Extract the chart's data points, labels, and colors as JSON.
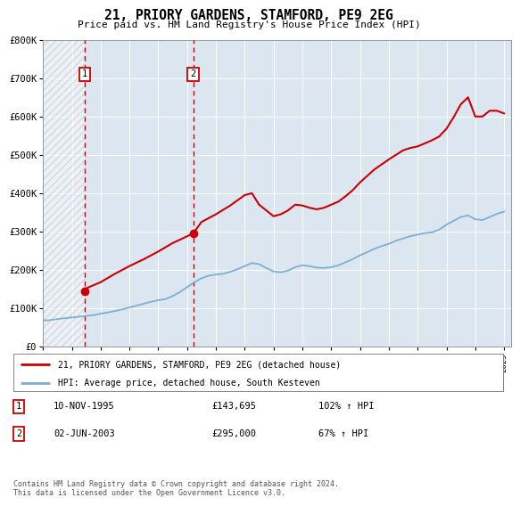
{
  "title": "21, PRIORY GARDENS, STAMFORD, PE9 2EG",
  "subtitle": "Price paid vs. HM Land Registry's House Price Index (HPI)",
  "legend_line1": "21, PRIORY GARDENS, STAMFORD, PE9 2EG (detached house)",
  "legend_line2": "HPI: Average price, detached house, South Kesteven",
  "footer": "Contains HM Land Registry data © Crown copyright and database right 2024.\nThis data is licensed under the Open Government Licence v3.0.",
  "sale1_date": "10-NOV-1995",
  "sale1_price": "£143,695",
  "sale1_hpi": "102% ↑ HPI",
  "sale1_x": 1995.87,
  "sale1_y": 143695,
  "sale2_date": "02-JUN-2003",
  "sale2_price": "£295,000",
  "sale2_hpi": "67% ↑ HPI",
  "sale2_x": 2003.42,
  "sale2_y": 295000,
  "ylim": [
    0,
    800000
  ],
  "xlim": [
    1993.0,
    2025.5
  ],
  "hatch_end": 1995.87,
  "red_color": "#cc0000",
  "blue_color": "#7bafd4",
  "background_color": "#dce6f1",
  "grid_color": "#ffffff",
  "hpi_years": [
    1993,
    1993.5,
    1994,
    1994.5,
    1995,
    1995.5,
    1996,
    1996.5,
    1997,
    1997.5,
    1998,
    1998.5,
    1999,
    1999.5,
    2000,
    2000.5,
    2001,
    2001.5,
    2002,
    2002.5,
    2003,
    2003.5,
    2004,
    2004.5,
    2005,
    2005.5,
    2006,
    2006.5,
    2007,
    2007.5,
    2008,
    2008.5,
    2009,
    2009.5,
    2010,
    2010.5,
    2011,
    2011.5,
    2012,
    2012.5,
    2013,
    2013.5,
    2014,
    2014.5,
    2015,
    2015.5,
    2016,
    2016.5,
    2017,
    2017.5,
    2018,
    2018.5,
    2019,
    2019.5,
    2020,
    2020.5,
    2021,
    2021.5,
    2022,
    2022.5,
    2023,
    2023.5,
    2024,
    2024.5,
    2025
  ],
  "hpi_values": [
    68000,
    69000,
    72000,
    74000,
    76000,
    78000,
    80000,
    82000,
    86000,
    89000,
    93000,
    97000,
    102000,
    107000,
    112000,
    117000,
    121000,
    124000,
    132000,
    142000,
    155000,
    168000,
    178000,
    185000,
    188000,
    190000,
    195000,
    202000,
    210000,
    218000,
    215000,
    205000,
    196000,
    194000,
    198000,
    207000,
    212000,
    210000,
    206000,
    205000,
    207000,
    212000,
    220000,
    228000,
    238000,
    246000,
    255000,
    262000,
    268000,
    276000,
    282000,
    288000,
    292000,
    296000,
    298000,
    305000,
    318000,
    328000,
    338000,
    342000,
    332000,
    330000,
    338000,
    346000,
    352000
  ],
  "property_years": [
    1995.87,
    1996,
    1997,
    1998,
    1999,
    2000,
    2001,
    2002,
    2003.42,
    2004,
    2005,
    2006,
    2007,
    2007.5,
    2008,
    2008.5,
    2009,
    2009.5,
    2010,
    2010.5,
    2011,
    2011.5,
    2012,
    2012.5,
    2013,
    2013.5,
    2014,
    2014.5,
    2015,
    2015.5,
    2016,
    2016.5,
    2017,
    2017.5,
    2018,
    2018.5,
    2019,
    2019.5,
    2020,
    2020.5,
    2021,
    2021.5,
    2022,
    2022.5,
    2023,
    2023.5,
    2024,
    2024.5,
    2025
  ],
  "property_values": [
    143695,
    152000,
    168000,
    190000,
    210000,
    228000,
    248000,
    270000,
    295000,
    325000,
    345000,
    368000,
    395000,
    400000,
    370000,
    355000,
    340000,
    345000,
    355000,
    370000,
    368000,
    362000,
    358000,
    362000,
    370000,
    378000,
    392000,
    408000,
    428000,
    445000,
    462000,
    475000,
    488000,
    500000,
    512000,
    518000,
    522000,
    530000,
    538000,
    548000,
    568000,
    598000,
    632000,
    650000,
    600000,
    600000,
    615000,
    615000,
    608000
  ],
  "xtick_years": [
    1993,
    1995,
    1997,
    1999,
    2001,
    2003,
    2005,
    2007,
    2009,
    2011,
    2013,
    2015,
    2017,
    2019,
    2021,
    2023,
    2025
  ],
  "ytick_values": [
    0,
    100000,
    200000,
    300000,
    400000,
    500000,
    600000,
    700000,
    800000
  ],
  "ytick_labels": [
    "£0",
    "£100K",
    "£200K",
    "£300K",
    "£400K",
    "£500K",
    "£600K",
    "£700K",
    "£800K"
  ]
}
